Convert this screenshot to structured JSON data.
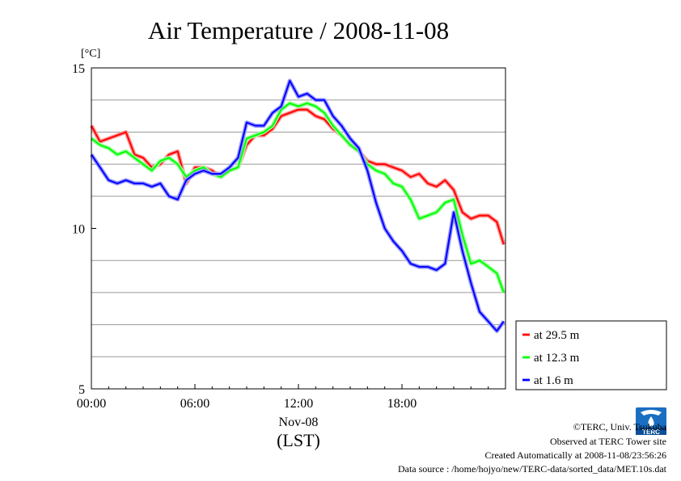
{
  "chart_data": {
    "type": "line",
    "title": "Air Temperature / 2008-11-08",
    "ylabel": "[°C]",
    "date_label": "Nov-08",
    "time_zone_label": "(LST)",
    "ylim": [
      5,
      15
    ],
    "xlim": [
      0,
      24
    ],
    "x_ticks": [
      0,
      6,
      12,
      18
    ],
    "x_tick_labels": [
      "00:00",
      "06:00",
      "12:00",
      "18:00"
    ],
    "y_ticks": [
      5,
      10,
      15
    ],
    "y_tick_labels": [
      "5",
      "10",
      "15"
    ],
    "y_gridlines": [
      6,
      7,
      8,
      9,
      11,
      12,
      13,
      14
    ],
    "grid": true,
    "legend_position": "right-bottom, outside",
    "x_unit": "hour of day",
    "x": [
      0,
      0.5,
      1,
      1.5,
      2,
      2.5,
      3,
      3.5,
      4,
      4.5,
      5,
      5.5,
      6,
      6.5,
      7,
      7.5,
      8,
      8.5,
      9,
      9.5,
      10,
      10.5,
      11,
      11.5,
      12,
      12.5,
      13,
      13.5,
      14,
      14.5,
      15,
      15.5,
      16,
      16.5,
      17,
      17.5,
      18,
      18.5,
      19,
      19.5,
      20,
      20.5,
      21,
      21.5,
      22,
      22.5,
      23,
      23.5,
      23.9
    ],
    "series": [
      {
        "name": "at 29.5 m",
        "color": "#ff0000",
        "values": [
          13.2,
          12.7,
          12.8,
          12.9,
          13.0,
          12.3,
          12.2,
          11.9,
          12.0,
          12.3,
          12.4,
          11.4,
          11.9,
          11.9,
          11.8,
          11.6,
          11.8,
          11.9,
          12.6,
          12.9,
          12.9,
          13.1,
          13.5,
          13.6,
          13.7,
          13.7,
          13.5,
          13.4,
          13.1,
          12.9,
          12.6,
          12.4,
          12.1,
          12.0,
          12.0,
          11.9,
          11.8,
          11.6,
          11.7,
          11.4,
          11.3,
          11.5,
          11.2,
          10.5,
          10.3,
          10.4,
          10.4,
          10.2,
          9.5
        ]
      },
      {
        "name": "at 12.3 m",
        "color": "#00ff00",
        "values": [
          12.8,
          12.6,
          12.5,
          12.3,
          12.4,
          12.2,
          12.0,
          11.8,
          12.1,
          12.2,
          12.0,
          11.6,
          11.8,
          11.9,
          11.7,
          11.6,
          11.8,
          11.9,
          12.8,
          12.9,
          13.0,
          13.2,
          13.7,
          13.9,
          13.8,
          13.9,
          13.8,
          13.6,
          13.2,
          12.9,
          12.6,
          12.4,
          12.0,
          11.8,
          11.7,
          11.4,
          11.3,
          10.9,
          10.3,
          10.4,
          10.5,
          10.8,
          10.9,
          9.8,
          8.9,
          9.0,
          8.8,
          8.6,
          8.0
        ]
      },
      {
        "name": "at 1.6 m",
        "color": "#0000ff",
        "values": [
          12.3,
          11.9,
          11.5,
          11.4,
          11.5,
          11.4,
          11.4,
          11.3,
          11.4,
          11.0,
          10.9,
          11.5,
          11.7,
          11.8,
          11.7,
          11.7,
          11.9,
          12.2,
          13.3,
          13.2,
          13.2,
          13.6,
          13.8,
          14.6,
          14.1,
          14.2,
          14.0,
          14.0,
          13.5,
          13.2,
          12.8,
          12.5,
          11.8,
          10.8,
          10.0,
          9.6,
          9.3,
          8.9,
          8.8,
          8.8,
          8.7,
          8.9,
          10.5,
          9.3,
          8.3,
          7.4,
          7.1,
          6.8,
          7.1
        ]
      }
    ]
  },
  "credits": {
    "copyright": "©TERC, Univ. Tsukuba",
    "site": "Observed at TERC Tower site",
    "created": "Created Automatically at 2008-11-08/23:56:26",
    "source": "Data source : /home/hojyo/new/TERC-data/sorted_data/MET.10s.dat"
  },
  "logo": {
    "text": "TERC",
    "icon": "terc-logo-icon",
    "color": "#1a6fc2"
  }
}
